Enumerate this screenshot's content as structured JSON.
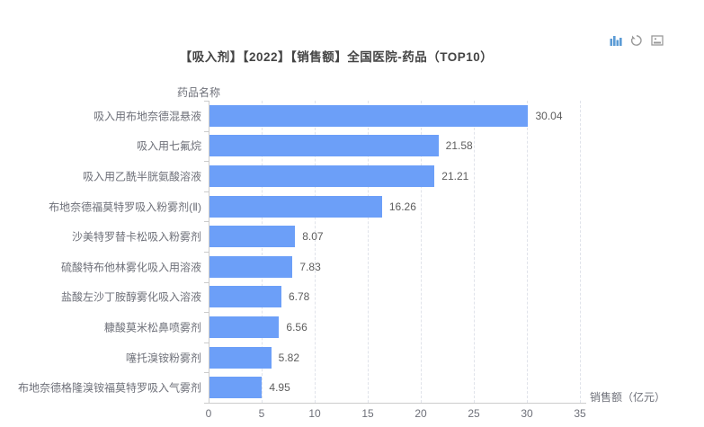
{
  "toolbar": {
    "icons": [
      {
        "name": "bar-chart-icon",
        "tooltip": "切换为柱状图",
        "color": "#5b9bd5"
      },
      {
        "name": "restore-icon",
        "tooltip": "还原",
        "color": "#9a9a9a"
      },
      {
        "name": "save-image-icon",
        "tooltip": "保存为图片",
        "color": "#9a9a9a"
      }
    ]
  },
  "chart_data": {
    "type": "bar",
    "orientation": "horizontal",
    "title": "【吸入剂】【2022】【销售额】全国医院-药品（TOP10）",
    "ylabel": "药品名称",
    "xlabel": "销售额（亿元）",
    "categories": [
      "吸入用布地奈德混悬液",
      "吸入用七氟烷",
      "吸入用乙酰半胱氨酸溶液",
      "布地奈德福莫特罗吸入粉雾剂(Ⅱ)",
      "沙美特罗替卡松吸入粉雾剂",
      "硫酸特布他林雾化吸入用溶液",
      "盐酸左沙丁胺醇雾化吸入溶液",
      "糠酸莫米松鼻喷雾剂",
      "噻托溴铵粉雾剂",
      "布地奈德格隆溴铵福莫特罗吸入气雾剂"
    ],
    "values": [
      30.04,
      21.58,
      21.21,
      16.26,
      8.07,
      7.83,
      6.78,
      6.56,
      5.82,
      4.95
    ],
    "xlim": [
      0,
      35
    ],
    "xticks": [
      0,
      5,
      10,
      15,
      20,
      25,
      30,
      35
    ],
    "bar_color": "#6c9ff8",
    "grid": true,
    "value_labels": true,
    "legend": "none"
  }
}
